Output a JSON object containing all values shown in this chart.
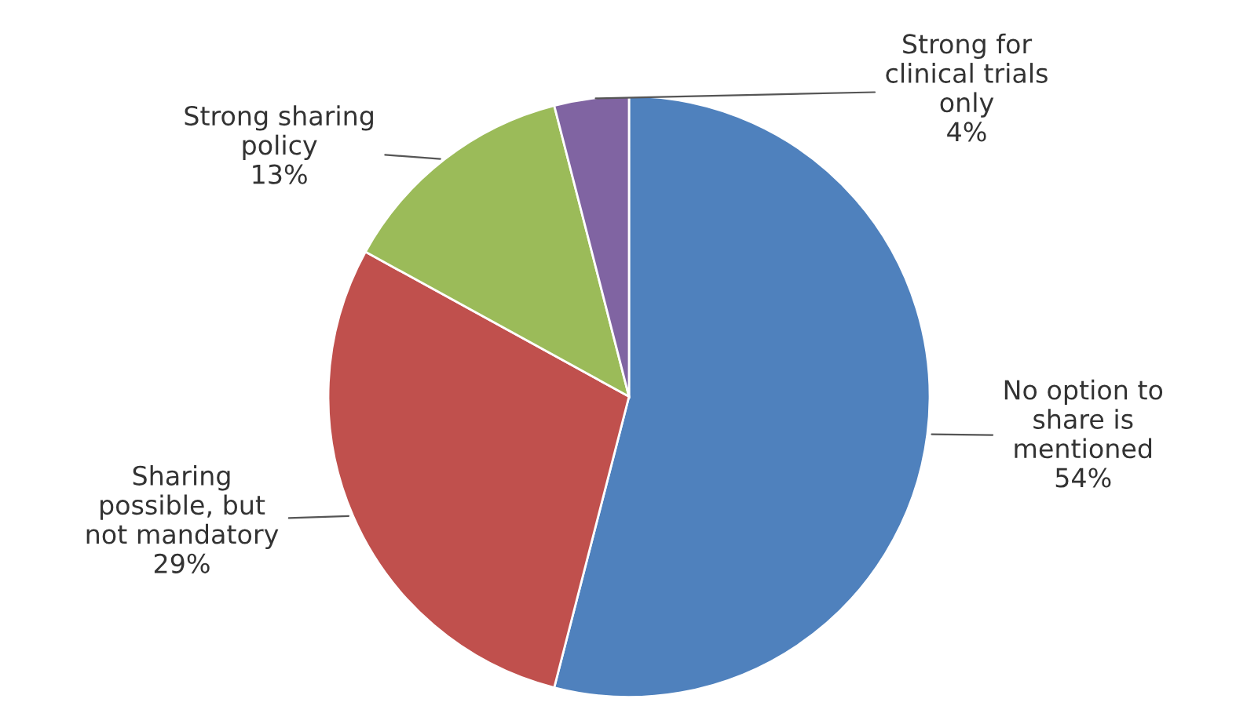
{
  "chart_data": {
    "type": "pie",
    "categories": [
      "No option to\nshare is\nmentioned",
      "Sharing\npossible, but\nnot mandatory",
      "Strong sharing\npolicy",
      "Strong for\nclinical trials\nonly"
    ],
    "values": [
      54,
      29,
      13,
      4
    ],
    "colors": [
      "#4f81bd",
      "#c0504d",
      "#9bbb59",
      "#8064a2"
    ],
    "value_labels": [
      "54%",
      "29%",
      "13%",
      "4%"
    ],
    "legend": false
  }
}
